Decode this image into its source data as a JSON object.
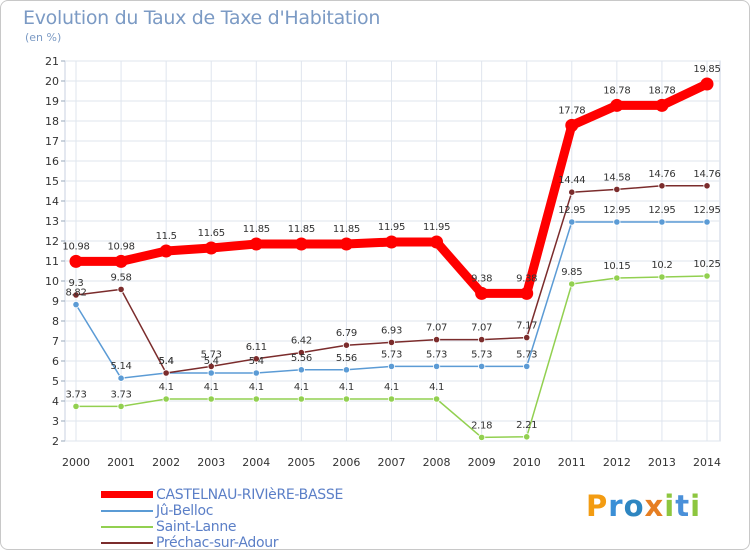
{
  "title": "Evolution du Taux de Taxe d'Habitation",
  "subtitle": "(en %)",
  "brand": "Proxiti",
  "colors": {
    "background": "#ffffff",
    "grid": "#dfe5ee",
    "text": "#7b9ac4",
    "axis_label": "#333333"
  },
  "chart_data": {
    "type": "line",
    "title": "Evolution du Taux de Taxe d'Habitation",
    "ylabel": "(en %)",
    "xlabel": "",
    "ylim": [
      2,
      21
    ],
    "yticks": [
      2,
      3,
      4,
      5,
      6,
      7,
      8,
      9,
      10,
      11,
      12,
      13,
      14,
      15,
      16,
      17,
      18,
      19,
      20,
      21
    ],
    "grid": true,
    "legend_position": "bottom-left",
    "x": [
      "2000",
      "2001",
      "2002",
      "2003",
      "2004",
      "2005",
      "2006",
      "2007",
      "2008",
      "2009",
      "2010",
      "2011",
      "2012",
      "2013",
      "2014"
    ],
    "series": [
      {
        "name": "CASTELNAU-RIVIèRE-BASSE",
        "color": "#ff0000",
        "emphasis": true,
        "values": [
          10.98,
          10.98,
          11.5,
          11.65,
          11.85,
          11.85,
          11.85,
          11.95,
          11.95,
          9.38,
          9.38,
          17.78,
          18.78,
          18.78,
          19.85
        ],
        "labels": [
          "10.98",
          "10.98",
          "11.5",
          "11.65",
          "11.85",
          "11.85",
          "11.85",
          "11.95",
          "11.95",
          "9.38",
          "9.38",
          "17.78",
          "18.78",
          "18.78",
          "19.85"
        ]
      },
      {
        "name": "Jû-Belloc",
        "color": "#5b9bd5",
        "values": [
          8.82,
          5.14,
          5.4,
          5.4,
          5.4,
          5.56,
          5.56,
          5.73,
          5.73,
          5.73,
          5.73,
          12.95,
          12.95,
          12.95,
          12.95
        ],
        "labels": [
          "8.82",
          "5.14",
          "5.4",
          "5.4",
          "5.4",
          "5.56",
          "5.56",
          "5.73",
          "5.73",
          "5.73",
          "5.73",
          "12.95",
          "12.95",
          "12.95",
          "12.95"
        ]
      },
      {
        "name": "Saint-Lanne",
        "color": "#92d050",
        "values": [
          3.73,
          3.73,
          4.1,
          4.1,
          4.1,
          4.1,
          4.1,
          4.1,
          4.1,
          2.18,
          2.21,
          9.85,
          10.15,
          10.2,
          10.25
        ],
        "labels": [
          "3.73",
          "3.73",
          "4.1",
          "4.1",
          "4.1",
          "4.1",
          "4.1",
          "4.1",
          "4.1",
          "2.18",
          "2.21",
          "9.85",
          "10.15",
          "10.2",
          "10.25"
        ]
      },
      {
        "name": "Préchac-sur-Adour",
        "color": "#7b2c2c",
        "values": [
          9.3,
          9.58,
          5.4,
          5.73,
          6.11,
          6.42,
          6.79,
          6.93,
          7.07,
          7.07,
          7.17,
          14.44,
          14.58,
          14.76,
          14.76
        ],
        "labels": [
          "9.3",
          "9.58",
          "5.4",
          "5.73",
          "6.11",
          "6.42",
          "6.79",
          "6.93",
          "7.07",
          "7.07",
          "7.17",
          "14.44",
          "14.58",
          "14.76",
          "14.76"
        ]
      }
    ]
  }
}
